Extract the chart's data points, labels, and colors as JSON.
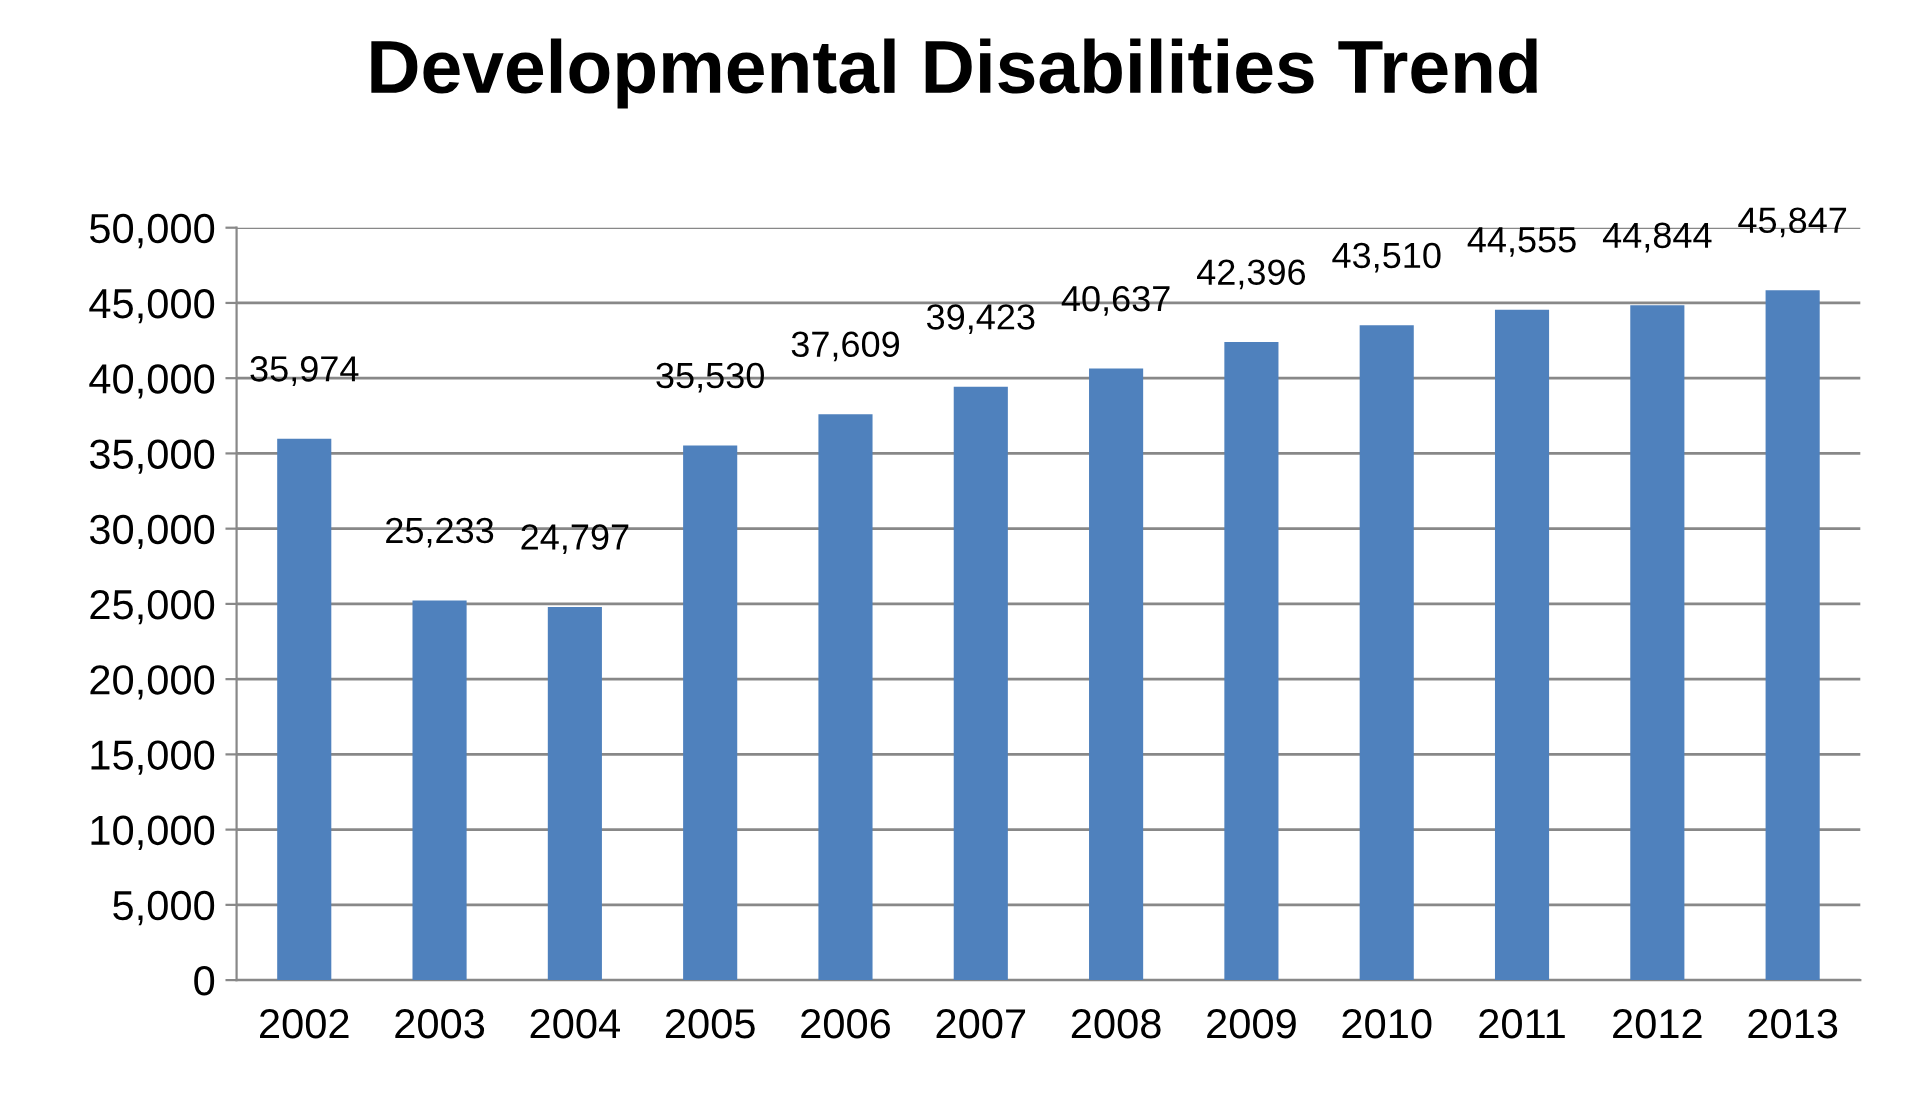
{
  "chart_data": {
    "type": "bar",
    "title": "Developmental Disabilities Trend",
    "categories": [
      "2002",
      "2003",
      "2004",
      "2005",
      "2006",
      "2007",
      "2008",
      "2009",
      "2010",
      "2011",
      "2012",
      "2013"
    ],
    "values": [
      35974,
      25233,
      24797,
      35530,
      37609,
      39423,
      40637,
      42396,
      43510,
      44555,
      44844,
      45847
    ],
    "value_labels": [
      "35,974",
      "25,233",
      "24,797",
      "35,530",
      "37,609",
      "39,423",
      "40,637",
      "42,396",
      "43,510",
      "44,555",
      "44,844",
      "45,847"
    ],
    "color": "#4f81bd",
    "ylim": [
      0,
      50000
    ],
    "yticks": [
      0,
      {
        "value": 5000,
        "label": "5,000"
      },
      {
        "value": 10000,
        "label": "10,000"
      },
      {
        "value": 15000,
        "label": "15,000"
      },
      {
        "value": 20000,
        "label": "20,000"
      },
      {
        "value": 25000,
        "label": "25,000"
      },
      {
        "value": 30000,
        "label": "30,000"
      },
      {
        "value": 35000,
        "label": "35,000"
      },
      {
        "value": 40000,
        "label": "40,000"
      },
      {
        "value": 45000,
        "label": "45,000"
      },
      {
        "value": 50000,
        "label": "50,000"
      }
    ],
    "grid": "y",
    "legend": false
  }
}
